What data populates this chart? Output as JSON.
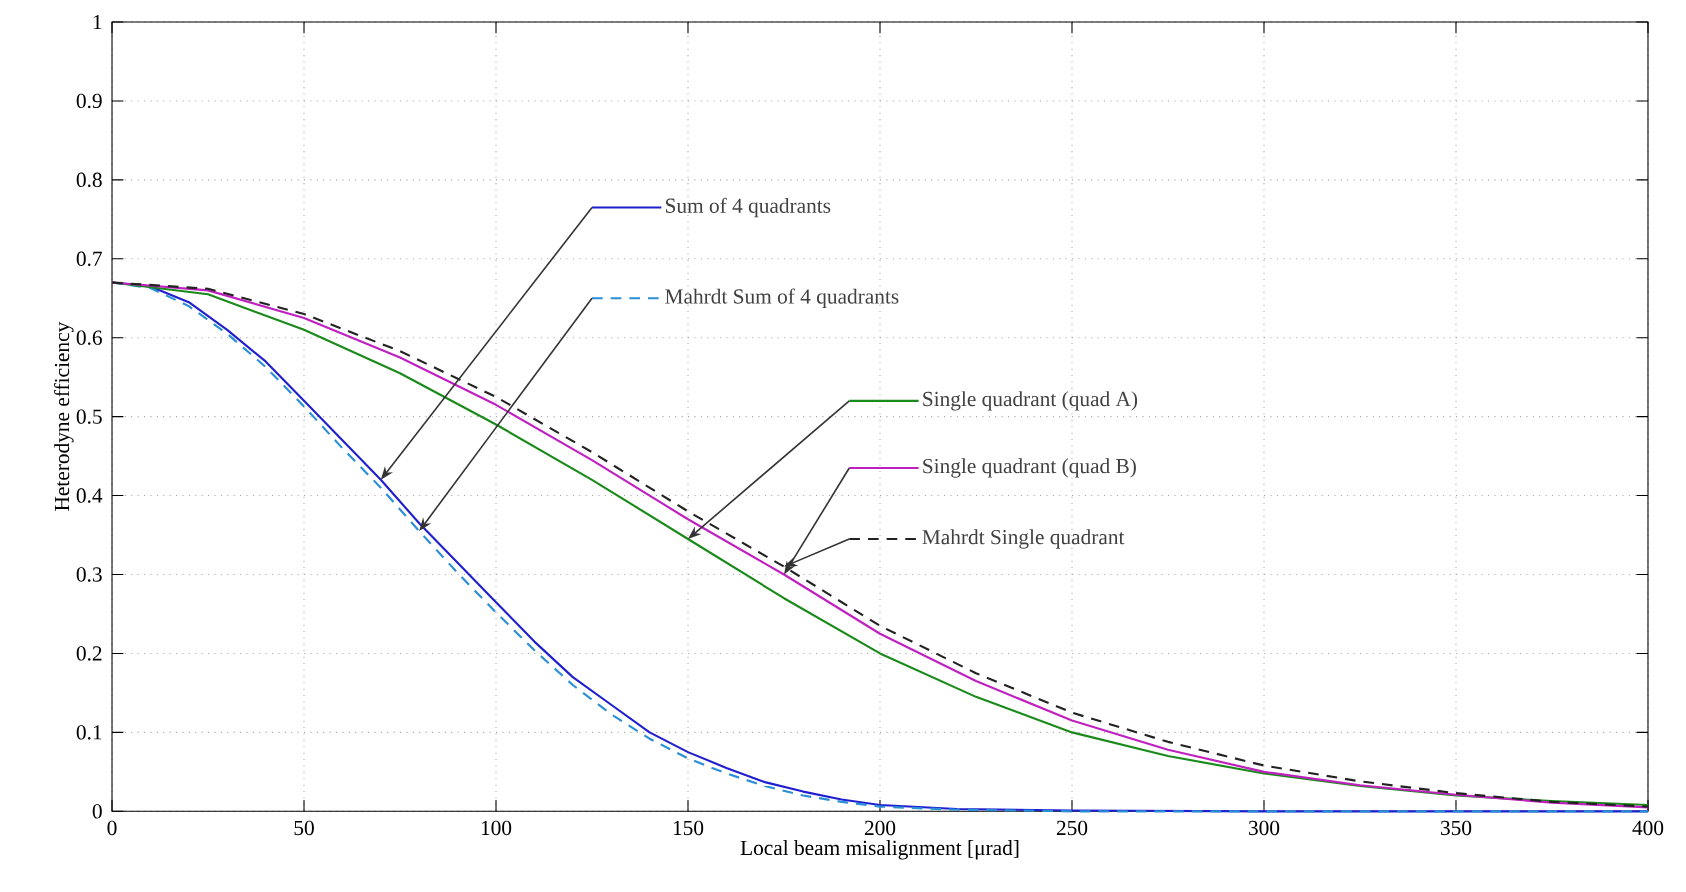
{
  "chart_data": {
    "type": "line",
    "xlabel": "Local beam misalignment [μrad]",
    "ylabel": "Heterodyne efficiency",
    "x": [
      0,
      10,
      20,
      30,
      40,
      50,
      60,
      70,
      80,
      90,
      100,
      110,
      120,
      130,
      140,
      150,
      160,
      170,
      180,
      190,
      200,
      220,
      250,
      300,
      400
    ],
    "xlim": [
      0,
      400
    ],
    "ylim": [
      0,
      1
    ],
    "xticks": [
      0,
      50,
      100,
      150,
      200,
      250,
      300,
      350,
      400
    ],
    "yticks": [
      0,
      0.1,
      0.2,
      0.3,
      0.4,
      0.5,
      0.6,
      0.7,
      0.8,
      0.9,
      1
    ],
    "grid": true,
    "legend": "top",
    "marker": "none",
    "series": [
      {
        "name": "Sum of 4 quadrants",
        "color": "#1f1fd0",
        "line_style": "solid",
        "values": [
          0.67,
          0.665,
          0.645,
          0.61,
          0.57,
          0.52,
          0.47,
          0.42,
          0.365,
          0.315,
          0.265,
          0.215,
          0.17,
          0.135,
          0.1,
          0.075,
          0.055,
          0.037,
          0.025,
          0.015,
          0.008,
          0.003,
          0.001,
          0,
          0
        ]
      },
      {
        "name": "Mahrdt Sum of 4 quadrants",
        "color": "#2a8fd6",
        "line_style": "dashed",
        "values": [
          0.67,
          0.663,
          0.64,
          0.605,
          0.563,
          0.513,
          0.46,
          0.41,
          0.355,
          0.302,
          0.252,
          0.204,
          0.16,
          0.123,
          0.092,
          0.067,
          0.048,
          0.032,
          0.02,
          0.012,
          0.006,
          0.002,
          0,
          0,
          0
        ]
      },
      {
        "name": "Single quadrant (quad A)",
        "color": "#1a8a1a",
        "line_style": "solid",
        "x": [
          0,
          25,
          50,
          75,
          100,
          125,
          150,
          175,
          200,
          225,
          250,
          275,
          300,
          325,
          350,
          375,
          400
        ],
        "values": [
          0.67,
          0.655,
          0.61,
          0.555,
          0.49,
          0.42,
          0.345,
          0.27,
          0.2,
          0.145,
          0.1,
          0.07,
          0.048,
          0.032,
          0.02,
          0.013,
          0.008
        ]
      },
      {
        "name": "Single quadrant (quad B)",
        "color": "#c020c0",
        "line_style": "solid",
        "x": [
          0,
          25,
          50,
          75,
          100,
          125,
          150,
          175,
          200,
          225,
          250,
          275,
          300,
          325,
          350,
          375,
          400
        ],
        "values": [
          0.67,
          0.66,
          0.625,
          0.575,
          0.515,
          0.445,
          0.37,
          0.3,
          0.225,
          0.165,
          0.115,
          0.078,
          0.05,
          0.033,
          0.021,
          0.011,
          0.005
        ]
      },
      {
        "name": "Mahrdt Single quadrant",
        "color": "#222222",
        "line_style": "dashed",
        "x": [
          0,
          25,
          50,
          75,
          100,
          125,
          150,
          175,
          200,
          225,
          250,
          275,
          300,
          325,
          350,
          375,
          400
        ],
        "values": [
          0.67,
          0.662,
          0.63,
          0.583,
          0.525,
          0.455,
          0.38,
          0.31,
          0.235,
          0.175,
          0.125,
          0.088,
          0.058,
          0.038,
          0.023,
          0.012,
          0.006
        ]
      }
    ]
  }
}
